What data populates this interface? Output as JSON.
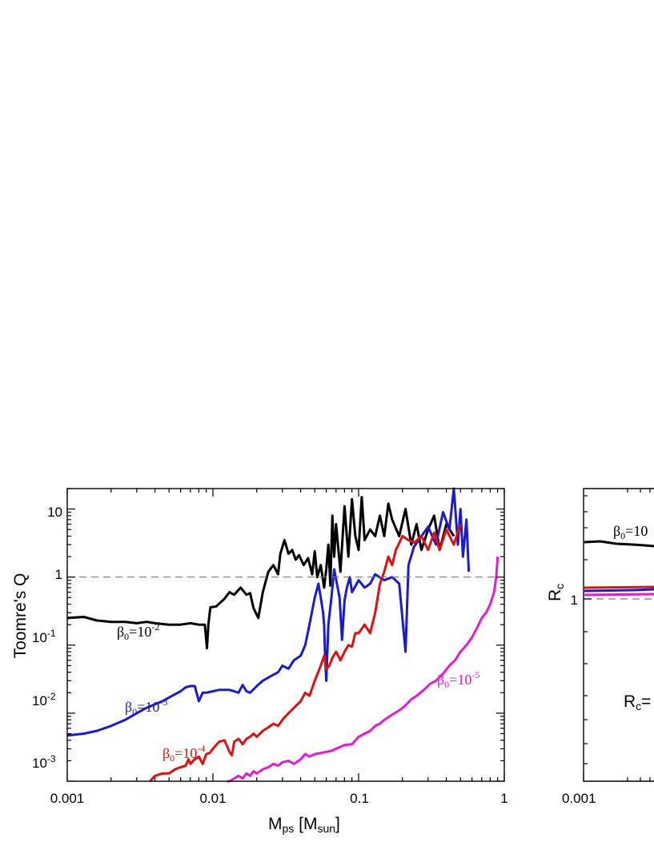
{
  "chart_data": [
    {
      "type": "line",
      "xlabel": "Mps [Msun]",
      "xlabel_parts": {
        "main": "M",
        "main_sub": "ps",
        "unit_open": " [M",
        "unit_sub": "sun",
        "unit_close": "]"
      },
      "ylabel": "Toomre's Q",
      "xscale": "log",
      "yscale": "log",
      "xlim": [
        0.001,
        1
      ],
      "ylim": [
        0.001,
        20
      ],
      "x_ticks": [
        "0.001",
        "0.01",
        "0.1",
        "1"
      ],
      "y_ticks": [
        {
          "value": 10,
          "label": "10",
          "base": "",
          "exp": ""
        },
        {
          "value": 1,
          "label": "1",
          "base": "",
          "exp": ""
        },
        {
          "value": 0.1,
          "label": "10-1",
          "base": "10",
          "exp": "-1"
        },
        {
          "value": 0.01,
          "label": "10-2",
          "base": "10",
          "exp": "-2"
        },
        {
          "value": 0.001,
          "label": "10-3",
          "base": "10",
          "exp": "-3"
        }
      ],
      "reference_line": {
        "y": 1,
        "style": "dashed"
      },
      "series": [
        {
          "name": "β0=10-2",
          "label_beta": "β",
          "label_sub": "0",
          "label_eq": "=10",
          "label_exp": "-2",
          "color": "#000000",
          "x": [
            0.001,
            0.0013,
            0.0016,
            0.002,
            0.0025,
            0.003,
            0.0035,
            0.004,
            0.005,
            0.006,
            0.007,
            0.008,
            0.0088,
            0.0091,
            0.0093,
            0.0096,
            0.0105,
            0.012,
            0.013,
            0.014,
            0.0155,
            0.017,
            0.018,
            0.019,
            0.0205,
            0.022,
            0.024,
            0.026,
            0.028,
            0.029,
            0.031,
            0.033,
            0.035,
            0.037,
            0.039,
            0.042,
            0.045,
            0.048,
            0.05,
            0.052,
            0.055,
            0.058,
            0.06,
            0.062,
            0.064,
            0.066,
            0.068,
            0.07,
            0.075,
            0.08,
            0.085,
            0.09,
            0.095,
            0.1,
            0.105,
            0.11,
            0.12,
            0.13,
            0.14,
            0.15,
            0.16,
            0.17,
            0.19,
            0.21,
            0.23,
            0.25,
            0.27,
            0.3,
            0.33,
            0.36,
            0.4,
            0.45
          ],
          "y": [
            0.25,
            0.26,
            0.23,
            0.22,
            0.22,
            0.21,
            0.22,
            0.21,
            0.2,
            0.2,
            0.21,
            0.2,
            0.2,
            0.09,
            0.2,
            0.36,
            0.37,
            0.48,
            0.6,
            0.55,
            0.7,
            0.55,
            0.58,
            0.35,
            0.25,
            0.6,
            1.2,
            1.5,
            1.1,
            2.2,
            3.5,
            2.2,
            2.5,
            1.8,
            2.1,
            1.5,
            1.9,
            1.1,
            2.4,
            1.0,
            1.5,
            0.7,
            1.3,
            3.0,
            0.75,
            8.0,
            2.0,
            6.0,
            1.2,
            11.0,
            2.0,
            14.0,
            4.0,
            2.5,
            15.0,
            3.5,
            5.0,
            4.0,
            8.0,
            4.0,
            12.0,
            7.0,
            4.0,
            10.0,
            3.0,
            6.0,
            2.5,
            5.0,
            8.0,
            2.5,
            6.0,
            4.0
          ]
        },
        {
          "name": "β0=10-3",
          "label_beta": "β",
          "label_sub": "0",
          "label_eq": "=10",
          "label_exp": "-3",
          "color": "#1a1ad2",
          "x": [
            0.001,
            0.0013,
            0.0016,
            0.002,
            0.0025,
            0.003,
            0.0035,
            0.004,
            0.0045,
            0.005,
            0.0055,
            0.006,
            0.0065,
            0.007,
            0.0075,
            0.008,
            0.0085,
            0.009,
            0.01,
            0.011,
            0.012,
            0.013,
            0.014,
            0.015,
            0.016,
            0.017,
            0.018,
            0.02,
            0.022,
            0.025,
            0.028,
            0.03,
            0.033,
            0.036,
            0.04,
            0.043,
            0.046,
            0.05,
            0.053,
            0.055,
            0.057,
            0.058,
            0.059,
            0.06,
            0.062,
            0.065,
            0.068,
            0.071,
            0.074,
            0.077,
            0.08,
            0.083,
            0.087,
            0.09,
            0.1,
            0.11,
            0.12,
            0.13,
            0.15,
            0.17,
            0.19,
            0.21,
            0.22,
            0.24,
            0.27,
            0.3,
            0.34,
            0.38,
            0.42,
            0.45,
            0.48,
            0.5,
            0.52,
            0.55,
            0.57
          ],
          "y": [
            0.0047,
            0.005,
            0.0055,
            0.0065,
            0.008,
            0.01,
            0.012,
            0.0135,
            0.015,
            0.017,
            0.019,
            0.021,
            0.024,
            0.025,
            0.025,
            0.015,
            0.02,
            0.02,
            0.021,
            0.022,
            0.022,
            0.022,
            0.021,
            0.02,
            0.026,
            0.021,
            0.02,
            0.025,
            0.03,
            0.035,
            0.04,
            0.05,
            0.045,
            0.06,
            0.07,
            0.1,
            0.2,
            0.5,
            0.8,
            0.5,
            0.3,
            0.2,
            0.06,
            0.03,
            0.2,
            0.5,
            1.3,
            0.8,
            0.5,
            0.12,
            0.45,
            0.7,
            1.0,
            0.6,
            0.9,
            0.7,
            0.8,
            1.1,
            0.9,
            1.0,
            0.8,
            0.08,
            1.5,
            2.8,
            4.0,
            5.5,
            3.0,
            9.0,
            5.0,
            20.0,
            3.0,
            10.0,
            2.0,
            7.0,
            1.2
          ]
        },
        {
          "name": "β0=10-4",
          "label_beta": "β",
          "label_sub": "0",
          "label_eq": "=10",
          "label_exp": "-4",
          "color": "#e01010",
          "x": [
            0.0037,
            0.004,
            0.0045,
            0.005,
            0.0055,
            0.006,
            0.0065,
            0.0068,
            0.007,
            0.0075,
            0.008,
            0.0085,
            0.009,
            0.0095,
            0.01,
            0.011,
            0.012,
            0.013,
            0.0135,
            0.014,
            0.015,
            0.016,
            0.017,
            0.018,
            0.019,
            0.02,
            0.022,
            0.024,
            0.026,
            0.028,
            0.03,
            0.033,
            0.036,
            0.04,
            0.043,
            0.046,
            0.05,
            0.055,
            0.058,
            0.06,
            0.063,
            0.066,
            0.07,
            0.075,
            0.08,
            0.085,
            0.09,
            0.095,
            0.1,
            0.11,
            0.12,
            0.13,
            0.14,
            0.15,
            0.16,
            0.17,
            0.18,
            0.2,
            0.22,
            0.24,
            0.27,
            0.3,
            0.33,
            0.36,
            0.4,
            0.45,
            0.5
          ],
          "y": [
            0.00095,
            0.0012,
            0.0013,
            0.0013,
            0.0015,
            0.0016,
            0.0017,
            0.0021,
            0.0018,
            0.0021,
            0.0023,
            0.0018,
            0.0025,
            0.0026,
            0.003,
            0.0038,
            0.004,
            0.0027,
            0.0024,
            0.0038,
            0.0042,
            0.0035,
            0.0042,
            0.0045,
            0.005,
            0.0045,
            0.0055,
            0.0062,
            0.007,
            0.0065,
            0.008,
            0.01,
            0.012,
            0.015,
            0.02,
            0.018,
            0.03,
            0.05,
            0.07,
            0.045,
            0.05,
            0.065,
            0.08,
            0.06,
            0.08,
            0.1,
            0.095,
            0.15,
            0.15,
            0.2,
            0.15,
            0.3,
            0.8,
            1.2,
            2.0,
            1.5,
            2.5,
            4.0,
            3.5,
            3.2,
            4.0,
            2.5,
            4.5,
            2.5,
            5.0,
            3.0,
            6.0
          ]
        },
        {
          "name": "β0=10-5",
          "label_beta": "β",
          "label_sub": "0",
          "label_eq": "=10",
          "label_exp": "-5",
          "color": "#e81ad0",
          "x": [
            0.0125,
            0.013,
            0.014,
            0.015,
            0.016,
            0.017,
            0.018,
            0.019,
            0.02,
            0.022,
            0.024,
            0.026,
            0.028,
            0.03,
            0.033,
            0.036,
            0.04,
            0.043,
            0.046,
            0.05,
            0.055,
            0.06,
            0.065,
            0.07,
            0.075,
            0.08,
            0.09,
            0.1,
            0.11,
            0.12,
            0.13,
            0.14,
            0.15,
            0.17,
            0.19,
            0.21,
            0.23,
            0.25,
            0.28,
            0.31,
            0.34,
            0.38,
            0.42,
            0.46,
            0.5,
            0.55,
            0.6,
            0.65,
            0.7,
            0.75,
            0.8,
            0.85,
            0.88,
            0.9
          ],
          "y": [
            0.001,
            0.0009,
            0.0011,
            0.0012,
            0.0011,
            0.0013,
            0.0012,
            0.0014,
            0.0013,
            0.0015,
            0.0016,
            0.0018,
            0.0017,
            0.0019,
            0.002,
            0.0018,
            0.0021,
            0.0025,
            0.0023,
            0.0025,
            0.0026,
            0.0027,
            0.0028,
            0.003,
            0.0032,
            0.0034,
            0.0035,
            0.0045,
            0.005,
            0.0055,
            0.0065,
            0.007,
            0.008,
            0.0095,
            0.011,
            0.013,
            0.016,
            0.018,
            0.022,
            0.027,
            0.03,
            0.038,
            0.05,
            0.06,
            0.08,
            0.1,
            0.13,
            0.18,
            0.25,
            0.3,
            0.4,
            0.6,
            1.0,
            2.0
          ]
        }
      ]
    },
    {
      "type": "line",
      "partial": true,
      "ylabel": "Rc",
      "ylabel_parts": {
        "main": "R",
        "sub": "c"
      },
      "x_ticks": [
        "0.001"
      ],
      "y_ticks": [
        "1"
      ],
      "reference_line": {
        "y": 1,
        "style": "dashed"
      },
      "annotations": [
        {
          "text": "β0=10",
          "beta": "β",
          "sub": "0",
          "eq": "=10"
        },
        {
          "text": "Rc=",
          "main": "R",
          "sub": "c",
          "eq": "="
        }
      ],
      "series": [
        {
          "color": "#000000"
        },
        {
          "color": "#e01010"
        },
        {
          "color": "#1a1ad2"
        },
        {
          "color": "#e81ad0"
        }
      ]
    }
  ]
}
